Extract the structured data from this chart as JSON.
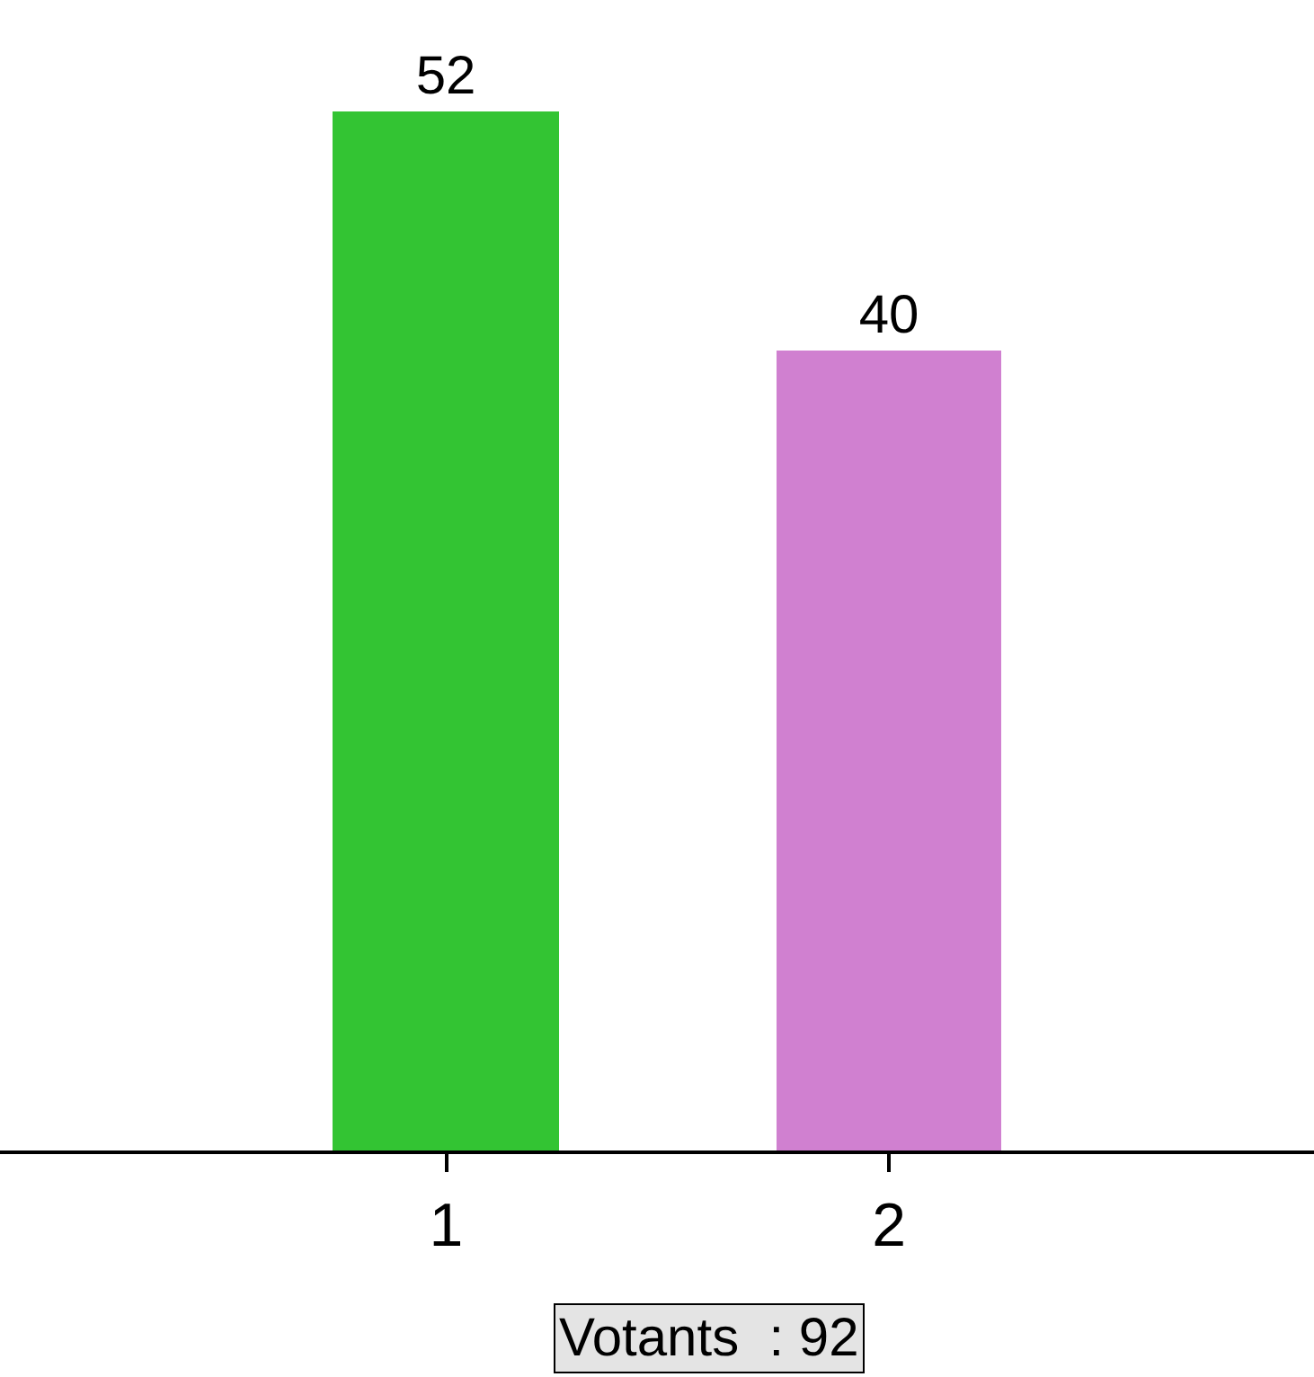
{
  "chart_data": {
    "type": "bar",
    "categories": [
      "1",
      "2"
    ],
    "values": [
      52,
      40
    ],
    "colors": [
      "#33c433",
      "#d080d0"
    ],
    "data_labels": true,
    "legend": false,
    "annotations": [
      "Votants  : 92"
    ]
  }
}
